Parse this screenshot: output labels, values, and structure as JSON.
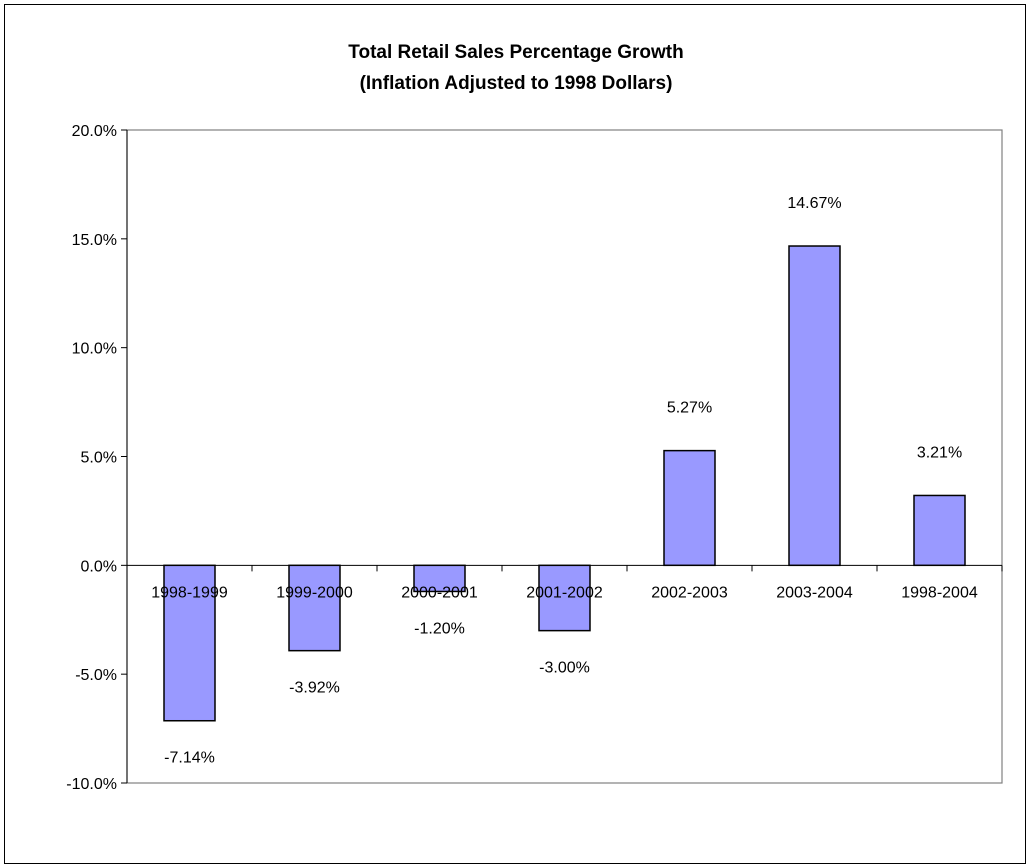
{
  "chart_data": {
    "type": "bar",
    "title": "Total Retail Sales Percentage Growth",
    "subtitle": "(Inflation Adjusted to 1998 Dollars)",
    "categories": [
      "1998-1999",
      "1999-2000",
      "2000-2001",
      "2001-2002",
      "2002-2003",
      "2003-2004",
      "1998-2004"
    ],
    "values": [
      -7.14,
      -3.92,
      -1.2,
      -3.0,
      5.27,
      14.67,
      3.21
    ],
    "data_labels": [
      "-7.14%",
      "-3.92%",
      "-1.20%",
      "-3.00%",
      "5.27%",
      "14.67%",
      "3.21%"
    ],
    "ylim": [
      -10,
      20
    ],
    "yticks": [
      20,
      15,
      10,
      5,
      0,
      -5,
      -10
    ],
    "ytick_labels": [
      "20.0%",
      "15.0%",
      "10.0%",
      "5.0%",
      "0.0%",
      "-5.0%",
      "-10.0%"
    ],
    "xlabel": "",
    "ylabel": "",
    "grid": false,
    "legend": "none",
    "bar_color": "#9999ff",
    "bar_edge_color": "#000000"
  }
}
